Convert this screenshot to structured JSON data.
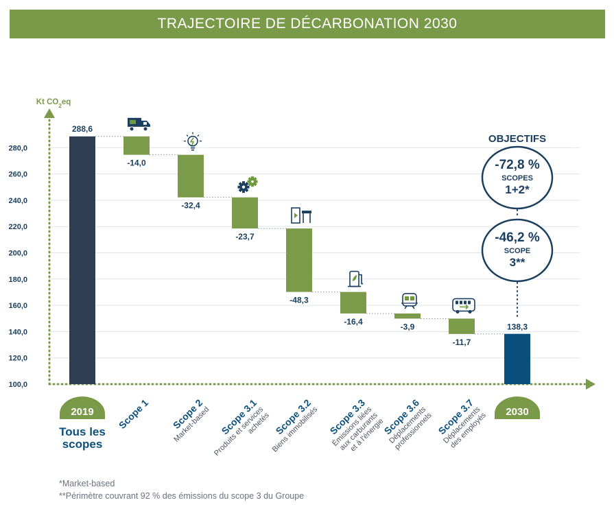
{
  "title": "TRAJECTOIRE DE DÉCARBONATION 2030",
  "footnotes": [
    "*Market-based",
    "**Périmètre couvrant 92 % des émissions du scope 3 du Groupe"
  ],
  "objectives": {
    "heading": "OBJECTIFS",
    "scopes12": {
      "value": "-72,8 %",
      "line1": "SCOPES",
      "line2": "1+2*"
    },
    "scope3": {
      "value": "-46,2 %",
      "line1": "SCOPE",
      "line2": "3**"
    }
  },
  "colors": {
    "title_bg": "#7a9a49",
    "bar_2019": "#2e3e52",
    "bar_step": "#7b9b4a",
    "bar_2030": "#0b4f7d",
    "text_navy": "#1b3f60",
    "axis_green": "#7a9a49",
    "pill_green": "#7a9a49"
  },
  "chart_data": {
    "type": "bar",
    "subtype": "waterfall",
    "ylabel": "Kt CO₂eq",
    "ylim": [
      100,
      290
    ],
    "yticks": [
      "100,0",
      "120,0",
      "140,0",
      "160,0",
      "180,0",
      "200,0",
      "220,0",
      "240,0",
      "260,0",
      "280,0"
    ],
    "ytick_values": [
      100,
      120,
      140,
      160,
      180,
      200,
      220,
      240,
      260,
      280
    ],
    "grid": true,
    "start": {
      "year": "2019",
      "caption_line1": "Tous les",
      "caption_line2": "scopes",
      "value": 288.6,
      "label": "288,6"
    },
    "steps": [
      {
        "title": "Scope 1",
        "sub": [],
        "icon": "truck-icon",
        "delta": -14.0,
        "label": "-14,0"
      },
      {
        "title": "Scope 2",
        "sub": [
          "Market-based"
        ],
        "icon": "lightbulb-icon",
        "delta": -32.4,
        "label": "-32,4"
      },
      {
        "title": "Scope 3.1",
        "sub": [
          "Produits et services",
          "achetés"
        ],
        "icon": "gears-icon",
        "delta": -23.7,
        "label": "-23,7"
      },
      {
        "title": "Scope 3.2",
        "sub": [
          "Biens immobilisés"
        ],
        "icon": "kiosk-icon",
        "delta": -48.3,
        "label": "-48,3"
      },
      {
        "title": "Scope 3.3",
        "sub": [
          "Émissions liées",
          "aux carburants",
          "et à l'énergie"
        ],
        "icon": "fuel-pump-icon",
        "delta": -16.4,
        "label": "-16,4"
      },
      {
        "title": "Scope 3.6",
        "sub": [
          "Déplacements",
          "professionnels"
        ],
        "icon": "train-icon",
        "delta": -3.9,
        "label": "-3,9"
      },
      {
        "title": "Scope 3.7",
        "sub": [
          "Déplacements",
          "des employés"
        ],
        "icon": "bus-icon",
        "delta": -11.7,
        "label": "-11,7"
      }
    ],
    "end": {
      "year": "2030",
      "value": 138.3,
      "label": "138,3"
    }
  }
}
